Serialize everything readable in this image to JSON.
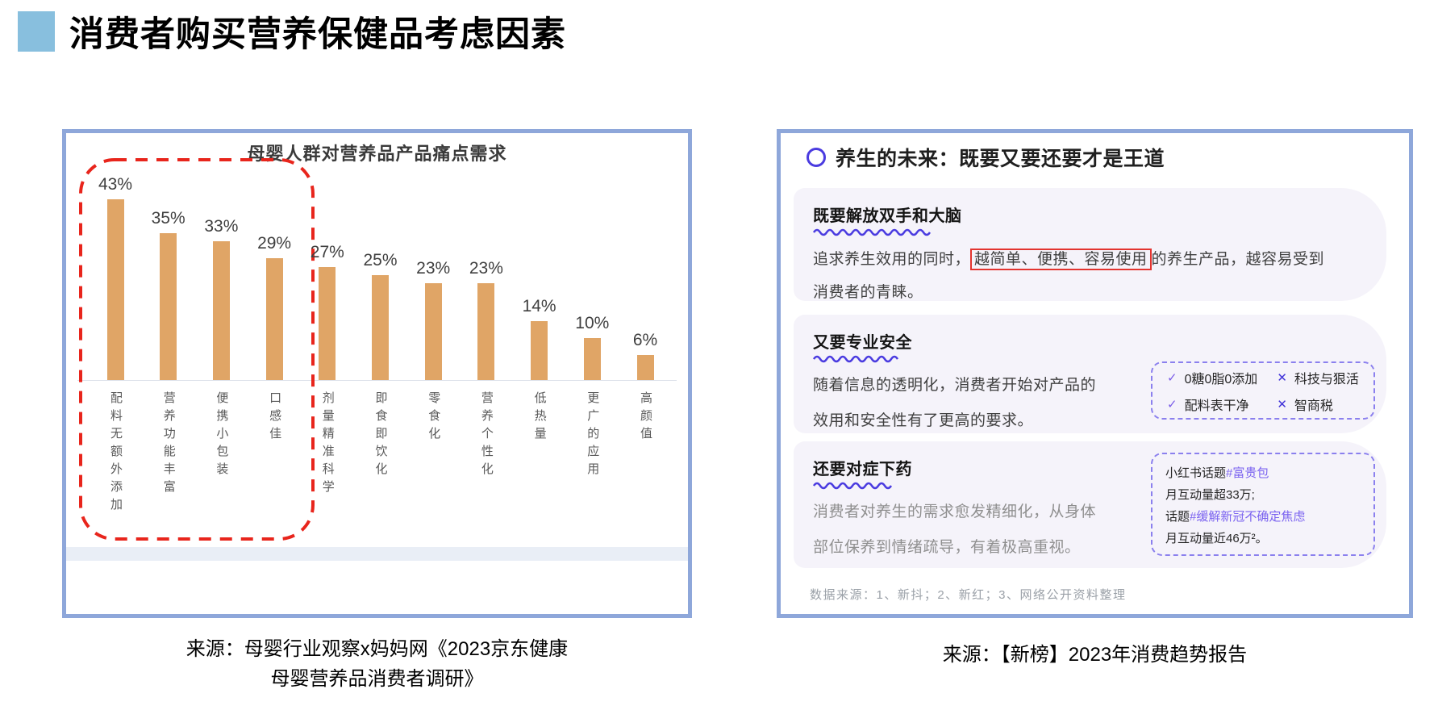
{
  "page": {
    "title": "消费者购买营养保健品考虑因素"
  },
  "chart_data": {
    "type": "bar",
    "title": "母婴人群对营养品产品痛点需求",
    "categories": [
      "配料无额外添加",
      "营养功能丰富",
      "便携小包装",
      "口感佳",
      "剂量精准科学",
      "即食即饮化",
      "零食化",
      "营养个性化",
      "低热量",
      "更广的应用",
      "高颜值"
    ],
    "values": [
      43,
      35,
      33,
      29,
      27,
      25,
      23,
      23,
      14,
      10,
      6
    ],
    "unit": "%",
    "ylim": [
      0,
      50
    ],
    "grid": false,
    "bar_color": "#e0a566",
    "value_label_color": "#404040",
    "highlight_box": {
      "style": "red-dashed-rounded",
      "color": "#e8251c",
      "covers_bars": [
        0,
        3
      ]
    }
  },
  "left_panel": {
    "caption_line1": "来源：母婴行业观察x妈妈网《2023京东健康",
    "caption_line2": "母婴营养品消费者调研》"
  },
  "right_panel": {
    "header": "养生的未来：既要又要还要才是王道",
    "sections": [
      {
        "heading": "既要解放双手和大脑",
        "body_prefix": "追求养生效用的同时，",
        "body_highlight": "越简单、便携、容易使用",
        "body_suffix": "的养生产品，越容易受到消费者的青睐。"
      },
      {
        "heading": "又要专业安全",
        "body": "随着信息的透明化，消费者开始对产品的效用和安全性有了更高的要求。",
        "checklist": [
          {
            "mark": "check",
            "text": "0糖0脂0添加"
          },
          {
            "mark": "cross",
            "text": "科技与狠活"
          },
          {
            "mark": "check",
            "text": "配料表干净"
          },
          {
            "mark": "cross",
            "text": "智商税"
          }
        ]
      },
      {
        "heading": "还要对症下药",
        "body": "消费者对养生的需求愈发精细化，从身体部位保养到情绪疏导，有着极高重视。",
        "topic_box": [
          {
            "prefix": "小红书话题",
            "tag": "#富贵包"
          },
          {
            "prefix": "月互动量超33万;",
            "tag": ""
          },
          {
            "prefix": "话题",
            "tag": "#缓解新冠不确定焦虑"
          },
          {
            "prefix": "月互动量近46万²。",
            "tag": ""
          }
        ]
      }
    ],
    "footnote": "数据来源：1、新抖；2、新红；3、网络公开资料整理",
    "caption": "来源：【新榜】2023年消费趋势报告"
  },
  "colors": {
    "panel_border": "#8ea7da",
    "title_square": "#88bfde",
    "bar": "#e0a566",
    "red_dashed": "#e8251c",
    "wave_underline": "#4a3be0",
    "card_background": "#f5f3fa",
    "check": "#7a5ce8",
    "cross": "#4133d8",
    "hashtag": "#7b63f0"
  }
}
